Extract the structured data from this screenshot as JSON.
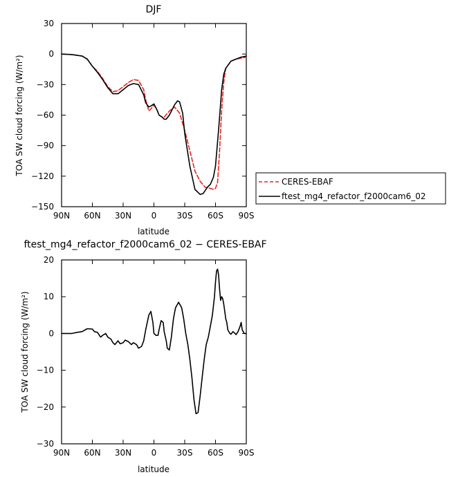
{
  "chart_data": [
    {
      "type": "line",
      "title": "DJF",
      "xlabel": "latitude",
      "ylabel": "TOA SW cloud forcing (W/m²)",
      "xlim": [
        90,
        -90
      ],
      "ylim": [
        -150,
        30
      ],
      "x_ticks": [
        90,
        60,
        30,
        0,
        -30,
        -60,
        -90
      ],
      "x_tick_labels": [
        "90N",
        "60N",
        "30N",
        "0",
        "30S",
        "60S",
        "90S"
      ],
      "y_ticks": [
        30,
        0,
        -30,
        -60,
        -90,
        -120,
        -150
      ],
      "y_tick_labels": [
        "30",
        "0",
        "−30",
        "−60",
        "−90",
        "−120",
        "−150"
      ],
      "legend": {
        "placement": "right"
      },
      "series": [
        {
          "name": "CERES-EBAF",
          "color": "#e8231f",
          "style": "dashed",
          "x": [
            90,
            80,
            70,
            65,
            60,
            55,
            50,
            45,
            40,
            35,
            30,
            25,
            20,
            15,
            10,
            8,
            5,
            3,
            0,
            -3,
            -5,
            -8,
            -10,
            -15,
            -20,
            -25,
            -30,
            -35,
            -40,
            -45,
            -50,
            -55,
            -58,
            -60,
            -62,
            -64,
            -66,
            -68,
            -70,
            -75,
            -80,
            -85,
            -90
          ],
          "values": [
            0,
            -0.5,
            -2,
            -5,
            -12,
            -17,
            -24,
            -32,
            -37,
            -36,
            -32,
            -28,
            -25,
            -26,
            -35,
            -45,
            -56,
            -54,
            -50,
            -55,
            -60,
            -62,
            -62,
            -56,
            -52,
            -58,
            -75,
            -95,
            -115,
            -125,
            -131,
            -132,
            -133,
            -132,
            -126,
            -95,
            -55,
            -28,
            -14,
            -7,
            -5,
            -4,
            -3
          ]
        },
        {
          "name": "ftest_mg4_refactor_f2000cam6_02",
          "color": "#000000",
          "style": "solid",
          "x": [
            90,
            80,
            70,
            65,
            60,
            55,
            50,
            45,
            40,
            35,
            30,
            25,
            20,
            15,
            10,
            8,
            5,
            3,
            0,
            -3,
            -5,
            -8,
            -10,
            -12,
            -15,
            -20,
            -23,
            -25,
            -28,
            -30,
            -35,
            -40,
            -45,
            -48,
            -50,
            -52,
            -55,
            -58,
            -60,
            -63,
            -66,
            -68,
            -70,
            -75,
            -80,
            -85,
            -90
          ],
          "values": [
            0,
            -0.5,
            -2,
            -5,
            -12,
            -18,
            -25,
            -33,
            -39,
            -39,
            -35,
            -31,
            -29,
            -30,
            -40,
            -48,
            -52,
            -51,
            -49,
            -55,
            -60,
            -62,
            -64,
            -64,
            -60,
            -50,
            -46,
            -47,
            -58,
            -78,
            -110,
            -133,
            -138,
            -137,
            -134,
            -131,
            -128,
            -121,
            -110,
            -75,
            -35,
            -20,
            -14,
            -7,
            -5,
            -3,
            -2
          ]
        }
      ]
    },
    {
      "type": "line",
      "title": "ftest_mg4_refactor_f2000cam6_02 − CERES-EBAF",
      "xlabel": "latitude",
      "ylabel": "TOA SW cloud forcing (W/m²)",
      "xlim": [
        90,
        -90
      ],
      "ylim": [
        -30,
        20
      ],
      "x_ticks": [
        90,
        60,
        30,
        0,
        -30,
        -60,
        -90
      ],
      "x_tick_labels": [
        "90N",
        "60N",
        "30N",
        "0",
        "30S",
        "60S",
        "90S"
      ],
      "y_ticks": [
        20,
        10,
        0,
        -10,
        -20,
        -30
      ],
      "y_tick_labels": [
        "20",
        "10",
        "0",
        "−10",
        "−20",
        "−30"
      ],
      "series": [
        {
          "color": "#000000",
          "style": "solid",
          "x": [
            90,
            80,
            75,
            70,
            65,
            60,
            58,
            55,
            52,
            50,
            47,
            45,
            42,
            40,
            38,
            35,
            33,
            30,
            28,
            25,
            22,
            20,
            17,
            15,
            12,
            10,
            8,
            5,
            3,
            1,
            0,
            -2,
            -4,
            -5,
            -7,
            -9,
            -10,
            -12,
            -13,
            -15,
            -17,
            -19,
            -21,
            -24,
            -27,
            -29,
            -31,
            -33,
            -35,
            -37,
            -39,
            -41,
            -43,
            -45,
            -47,
            -49,
            -51,
            -53,
            -55,
            -57,
            -59,
            -60,
            -61,
            -62,
            -63,
            -64,
            -65,
            -66,
            -67,
            -68,
            -69,
            -70,
            -71,
            -72,
            -74,
            -75,
            -77,
            -79,
            -80,
            -82,
            -84,
            -85,
            -86,
            -87,
            -88,
            -90
          ],
          "values": [
            0,
            0,
            0.3,
            0.5,
            1.3,
            1.2,
            0.5,
            0.3,
            -1,
            -0.5,
            0,
            -1,
            -1.5,
            -2.5,
            -3,
            -2,
            -2.8,
            -2.5,
            -1.8,
            -2.2,
            -3,
            -2.5,
            -3,
            -4,
            -3.5,
            -2,
            1,
            5,
            6,
            3,
            0,
            -0.5,
            -0.5,
            1,
            3.5,
            3,
            0.5,
            -2,
            -4,
            -4.5,
            -1,
            4,
            7,
            8.5,
            7,
            4,
            0,
            -3,
            -7,
            -12,
            -18,
            -21.8,
            -21.5,
            -17,
            -12,
            -7,
            -3,
            -1,
            2,
            5,
            10,
            14,
            17,
            17.5,
            16,
            12,
            9,
            10,
            9.5,
            8,
            6,
            4,
            3,
            1,
            0,
            -0.2,
            0.5,
            0,
            -0.3,
            0.5,
            2,
            3,
            1,
            0.5,
            0,
            0
          ]
        }
      ]
    }
  ]
}
